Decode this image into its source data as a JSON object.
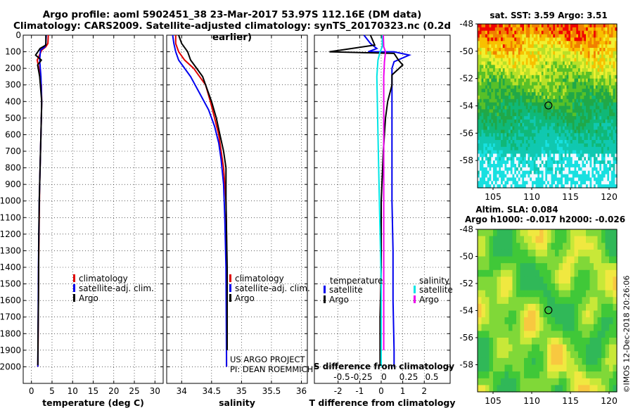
{
  "header": {
    "line1": "Argo profile: aoml 5902451_38 23-Mar-2017 53.97S 112.16E (DM data)",
    "line2": "Climatology: CARS2009. Satellite-adjusted climatology: synTS_20170323.nc (0.2d earlier)"
  },
  "colors": {
    "climatology": "#e00000",
    "satellite": "#0000ee",
    "argo": "#000000",
    "cyan": "#00e5e5",
    "magenta": "#ee00ee"
  },
  "chart_data": [
    {
      "type": "line",
      "xlabel": "temperature (deg C)",
      "xlim": [
        -2,
        32
      ],
      "ylim": [
        2100,
        0
      ],
      "xticks": [
        "0",
        "5",
        "10",
        "15",
        "20",
        "25",
        "30"
      ],
      "yticks": [
        "0",
        "100",
        "200",
        "300",
        "400",
        "500",
        "600",
        "700",
        "800",
        "900",
        "1000",
        "1100",
        "1200",
        "1300",
        "1400",
        "1500",
        "1600",
        "1700",
        "1800",
        "1900",
        "2000"
      ],
      "legend": [
        "climatology",
        "satellite-adj. clim.",
        "Argo"
      ],
      "series": [
        {
          "name": "climatology",
          "color": "red",
          "x": [
            4.1,
            4.0,
            3.5,
            2.5,
            1.4,
            1.8,
            2.4,
            2.5,
            2.4,
            2.3,
            2.2,
            2.1,
            2.0,
            1.95,
            1.9,
            1.85,
            1.8,
            1.75,
            1.7,
            1.65,
            1.6,
            1.55
          ],
          "y": [
            0,
            50,
            70,
            90,
            150,
            200,
            300,
            400,
            500,
            600,
            700,
            800,
            900,
            1000,
            1100,
            1200,
            1300,
            1400,
            1500,
            1700,
            1900,
            2000
          ]
        },
        {
          "name": "satellite-adj. clim.",
          "color": "blue",
          "x": [
            3.6,
            3.5,
            3.3,
            2.2,
            2.0,
            2.3,
            2.5,
            2.4,
            2.3,
            2.2,
            2.1,
            2.0,
            1.9,
            1.85,
            1.8,
            1.75,
            1.7,
            1.65,
            1.6,
            1.55
          ],
          "y": [
            0,
            50,
            70,
            90,
            150,
            250,
            400,
            500,
            600,
            700,
            800,
            900,
            1000,
            1100,
            1200,
            1300,
            1400,
            1600,
            1800,
            2000
          ]
        },
        {
          "name": "Argo",
          "color": "black",
          "x": [
            3.5,
            3.5,
            2.1,
            1.0,
            2.4,
            1.5,
            2.0,
            2.5,
            2.3,
            2.2,
            2.1,
            2.0,
            1.9,
            1.85,
            1.8,
            1.75,
            1.7,
            1.6,
            1.55
          ],
          "y": [
            0,
            60,
            80,
            120,
            150,
            180,
            250,
            400,
            600,
            700,
            800,
            900,
            1000,
            1100,
            1200,
            1400,
            1600,
            1800,
            1990
          ]
        }
      ]
    },
    {
      "type": "line",
      "xlabel": "salinity",
      "xlim": [
        33.75,
        36.1
      ],
      "ylim": [
        2100,
        0
      ],
      "xticks": [
        "34",
        "34.5",
        "35",
        "35.5",
        "36"
      ],
      "legend": [
        "climatology",
        "satellite-adj. clim.",
        "Argo"
      ],
      "annotations": [
        "US ARGO PROJECT",
        "PI: DEAN ROEMMICH"
      ],
      "series": [
        {
          "name": "climatology",
          "color": "red",
          "x": [
            33.9,
            33.9,
            33.95,
            34.05,
            34.2,
            34.3,
            34.4,
            34.48,
            34.55,
            34.62,
            34.66,
            34.7,
            34.72,
            34.74,
            34.75,
            34.75,
            34.75
          ],
          "y": [
            0,
            50,
            100,
            150,
            200,
            250,
            300,
            400,
            500,
            600,
            700,
            800,
            900,
            1000,
            1200,
            1600,
            2000
          ]
        },
        {
          "name": "satellite-adj. clim.",
          "color": "blue",
          "x": [
            33.85,
            33.87,
            33.9,
            33.95,
            34.05,
            34.15,
            34.3,
            34.45,
            34.55,
            34.62,
            34.66,
            34.7,
            34.72,
            34.74,
            34.75
          ],
          "y": [
            0,
            50,
            100,
            150,
            200,
            250,
            350,
            450,
            550,
            650,
            750,
            900,
            1100,
            1400,
            2000
          ]
        },
        {
          "name": "Argo",
          "color": "black",
          "x": [
            33.95,
            34.0,
            34.1,
            34.15,
            34.25,
            34.35,
            34.4,
            34.5,
            34.58,
            34.64,
            34.7,
            34.74,
            34.74,
            34.76,
            34.76
          ],
          "y": [
            0,
            50,
            100,
            150,
            200,
            250,
            300,
            400,
            500,
            600,
            700,
            800,
            1000,
            1400,
            1900
          ]
        }
      ]
    },
    {
      "type": "line",
      "title": "S difference from climatology",
      "xlabel": "T difference from climatology",
      "xlim": [
        -3.1,
        3.2
      ],
      "ylim": [
        2100,
        0
      ],
      "xticks": [
        "-2",
        "-1",
        "0",
        "1",
        "2"
      ],
      "sticks": [
        "-0.5",
        "-0.25",
        "0",
        "0.25",
        "0.5"
      ],
      "legend_titles": [
        "temperature",
        "salinity"
      ],
      "legend": [
        "satellite",
        "Argo",
        "satellite",
        "Argo"
      ],
      "series": [
        {
          "name": "temperature satellite",
          "color": "blue",
          "x": [
            -0.8,
            -0.5,
            -0.2,
            -0.6,
            0.6,
            1.3,
            0.6,
            0.5,
            0.5,
            0.5,
            0.5,
            0.5,
            0.55,
            0.55,
            0.6,
            0.6
          ],
          "y": [
            0,
            50,
            80,
            100,
            100,
            120,
            160,
            200,
            300,
            500,
            800,
            1000,
            1300,
            1600,
            1900,
            2000
          ]
        },
        {
          "name": "temperature Argo",
          "color": "black",
          "x": [
            -0.5,
            -0.3,
            -2.4,
            0.6,
            0.8,
            1.0,
            0.5,
            0.5,
            0.3,
            0.2,
            0.1,
            0.0,
            0.0,
            -0.05,
            -0.05
          ],
          "y": [
            0,
            60,
            100,
            110,
            150,
            180,
            240,
            300,
            400,
            500,
            700,
            1000,
            1400,
            1700,
            1990
          ]
        },
        {
          "name": "salinity satellite",
          "color": "cyan",
          "x": [
            0.05,
            0.05,
            -0.05,
            -0.15,
            -0.2,
            -0.18,
            -0.15,
            -0.1,
            -0.05,
            0.0,
            0.0,
            0.0
          ],
          "y": [
            0,
            70,
            100,
            150,
            250,
            400,
            600,
            900,
            1200,
            1500,
            1800,
            2000
          ]
        },
        {
          "name": "salinity Argo",
          "color": "magenta",
          "x": [
            0.1,
            0.12,
            0.2,
            0.15,
            0.12,
            0.12,
            0.12,
            0.12,
            0.12,
            0.12
          ],
          "y": [
            0,
            70,
            100,
            160,
            250,
            400,
            700,
            1000,
            1500,
            1900
          ]
        }
      ]
    },
    {
      "type": "heatmap",
      "title": "sat. SST: 3.59 Argo: 3.51",
      "xlim": [
        103,
        121
      ],
      "ylim": [
        -60,
        -48
      ],
      "xticks": [
        "105",
        "110",
        "115",
        "120"
      ],
      "yticks": [
        "-48",
        "-50",
        "-52",
        "-54",
        "-56",
        "-58"
      ],
      "marker": {
        "x": 112.16,
        "y": -53.97
      }
    },
    {
      "type": "heatmap",
      "title": "Altim. SLA: 0.084",
      "subtitle": "Argo h1000: -0.017 h2000: -0.026",
      "xlim": [
        103,
        121
      ],
      "ylim": [
        -60,
        -48
      ],
      "xticks": [
        "105",
        "110",
        "115",
        "120"
      ],
      "yticks": [
        "-48",
        "-50",
        "-52",
        "-54",
        "-56",
        "-58"
      ],
      "marker": {
        "x": 112.16,
        "y": -53.97
      }
    }
  ],
  "footer": {
    "credit": "©IMOS 12-Dec-2018 20:26:06"
  }
}
